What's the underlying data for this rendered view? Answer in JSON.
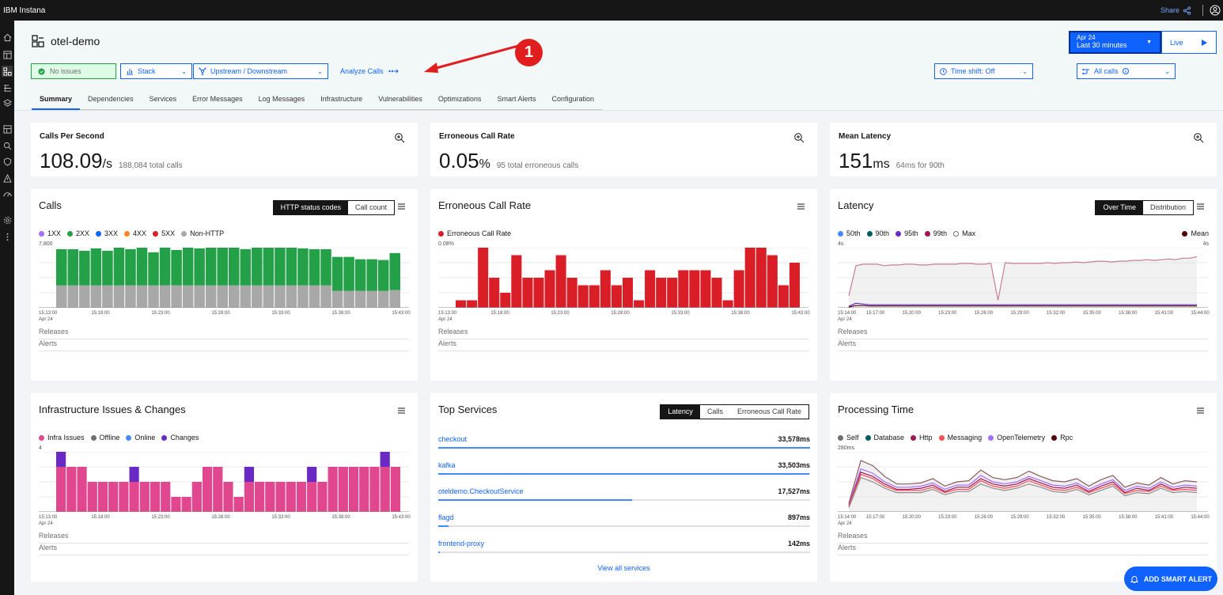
{
  "app": {
    "brand": "IBM Instana",
    "share_label": "Share"
  },
  "header": {
    "title": "otel-demo",
    "no_issues": "No issues",
    "stack_label": "Stack",
    "upstream_label": "Upstream / Downstream",
    "analyze_label": "Analyze Calls",
    "time_shift_label": "Time shift: Off",
    "all_calls_label": "All calls",
    "date_label": "Apr 24",
    "range_label": "Last 30 minutes",
    "live_label": "Live",
    "annotation_number": "1"
  },
  "tabs": [
    "Summary",
    "Dependencies",
    "Services",
    "Error Messages",
    "Log Messages",
    "Infrastructure",
    "Vulnerabilities",
    "Optimizations",
    "Smart Alerts",
    "Configuration"
  ],
  "kpis": [
    {
      "label": "Calls Per Second",
      "value": "108.09",
      "unit": "/s",
      "sub": "188,084 total calls"
    },
    {
      "label": "Erroneous Call Rate",
      "value": "0.05",
      "unit": "%",
      "sub": "95 total erroneous calls"
    },
    {
      "label": "Mean Latency",
      "value": "151",
      "unit": "ms",
      "sub": "64ms for 90th"
    }
  ],
  "calls_card": {
    "title": "Calls",
    "seg": [
      "HTTP status codes",
      "Call count"
    ],
    "legend": [
      {
        "label": "1XX",
        "color": "#a56eff"
      },
      {
        "label": "2XX",
        "color": "#24a148"
      },
      {
        "label": "3XX",
        "color": "#0f62fe"
      },
      {
        "label": "4XX",
        "color": "#ff832b"
      },
      {
        "label": "5XX",
        "color": "#da1e28"
      },
      {
        "label": "Non-HTTP",
        "color": "#a8a8a8"
      }
    ],
    "ymax_label": "7,800",
    "releases": "Releases",
    "alerts": "Alerts"
  },
  "err_card": {
    "title": "Erroneous Call Rate",
    "legend": "Erroneous Call Rate",
    "ymax_label": "0.08%",
    "releases": "Releases",
    "alerts": "Alerts"
  },
  "lat_card": {
    "title": "Latency",
    "seg": [
      "Over Time",
      "Distribution"
    ],
    "legend": [
      {
        "label": "50th",
        "color": "#4589ff"
      },
      {
        "label": "90th",
        "color": "#005d5d"
      },
      {
        "label": "95th",
        "color": "#6929c4"
      },
      {
        "label": "99th",
        "color": "#9f1853"
      },
      {
        "label": "Max",
        "color": "#ffffff"
      }
    ],
    "mean_label": "Mean",
    "ymax_label": "4s",
    "ymax_right": "4s",
    "releases": "Releases",
    "alerts": "Alerts"
  },
  "infra_card": {
    "title": "Infrastructure Issues & Changes",
    "legend": [
      {
        "label": "Infra Issues",
        "color": "#e0478f"
      },
      {
        "label": "Offline",
        "color": "#6f6f6f"
      },
      {
        "label": "Online",
        "color": "#4589ff"
      },
      {
        "label": "Changes",
        "color": "#6929c4"
      }
    ],
    "ymax_label": "4",
    "releases": "Releases",
    "alerts": "Alerts"
  },
  "top_services": {
    "title": "Top Services",
    "seg": [
      "Latency",
      "Calls",
      "Erroneous Call Rate"
    ],
    "items": [
      {
        "name": "checkout",
        "value": "33,578ms",
        "pct": 1.0
      },
      {
        "name": "kafka",
        "value": "33,503ms",
        "pct": 0.998
      },
      {
        "name": "oteldemo.CheckoutService",
        "value": "17,527ms",
        "pct": 0.522
      },
      {
        "name": "flagd",
        "value": "897ms",
        "pct": 0.027
      },
      {
        "name": "frontend-proxy",
        "value": "142ms",
        "pct": 0.004
      }
    ],
    "view_all": "View all services"
  },
  "proc_card": {
    "title": "Processing Time",
    "legend": [
      {
        "label": "Self",
        "color": "#6f6f6f"
      },
      {
        "label": "Database",
        "color": "#005d5d"
      },
      {
        "label": "Http",
        "color": "#9f1853"
      },
      {
        "label": "Messaging",
        "color": "#fa4d56"
      },
      {
        "label": "OpenTelemetry",
        "color": "#a56eff"
      },
      {
        "label": "Rpc",
        "color": "#520408"
      }
    ],
    "ymax_label": "280ms",
    "releases": "Releases",
    "alerts": "Alerts"
  },
  "xaxis_a": [
    "15:13:00",
    "15:18:00",
    "15:23:00",
    "15:28:00",
    "15:33:00",
    "15:38:00",
    "15:43:00"
  ],
  "xaxis_b": [
    "15:14:00",
    "15:17:00",
    "15:20:00",
    "15:23:00",
    "15:26:00",
    "15:29:00",
    "15:32:00",
    "15:35:00",
    "15:38:00",
    "15:41:00",
    "15:44:00"
  ],
  "date_sub": "Apr 24",
  "smart_alert_label": "ADD SMART ALERT",
  "chart_data": [
    {
      "type": "bar",
      "title": "Calls",
      "ylim": [
        0,
        7800
      ],
      "series": [
        {
          "name": "Non-HTTP",
          "values": [
            2900,
            2900,
            2900,
            2900,
            2900,
            2900,
            2900,
            2900,
            2900,
            2900,
            2900,
            2900,
            2900,
            2900,
            2900,
            2900,
            2900,
            2900,
            2900,
            2900,
            2900,
            2900,
            2900,
            2900,
            2200,
            2200,
            2200,
            2200,
            2200,
            2300
          ]
        },
        {
          "name": "2XX",
          "values": [
            4700,
            4700,
            4500,
            4800,
            4500,
            5000,
            4700,
            4900,
            4300,
            5600,
            4600,
            5000,
            4800,
            5600,
            5400,
            5100,
            4700,
            5000,
            4900,
            5100,
            4900,
            4800,
            4700,
            4700,
            4400,
            4400,
            4100,
            4100,
            4000,
            4800
          ]
        }
      ]
    },
    {
      "type": "bar",
      "title": "Erroneous Call Rate",
      "ylim": [
        0,
        0.08
      ],
      "series": [
        {
          "name": "Erroneous Call Rate",
          "values": [
            0.01,
            0.01,
            0.08,
            0.04,
            0.02,
            0.07,
            0.04,
            0.04,
            0.05,
            0.07,
            0.04,
            0.03,
            0.03,
            0.05,
            0.03,
            0.04,
            0.01,
            0.05,
            0.04,
            0.04,
            0.05,
            0.05,
            0.05,
            0.04,
            0.01,
            0.05,
            0.08,
            0.08,
            0.07,
            0.03,
            0.06
          ]
        }
      ]
    },
    {
      "type": "line",
      "title": "Latency",
      "ylim": [
        0,
        4
      ],
      "series": [
        {
          "name": "Max",
          "values": [
            0.8,
            2.8,
            2.9,
            2.9,
            2.9,
            2.8,
            2.85,
            2.85,
            2.9,
            2.9,
            2.85,
            2.85,
            2.9,
            2.9,
            2.9,
            2.9,
            2.95,
            2.95,
            2.9,
            2.9,
            2.95,
            0.5,
            3.0,
            2.95,
            2.95,
            2.95,
            2.95,
            2.95,
            3.0,
            2.95,
            3.0,
            3.0,
            3.05,
            3.0,
            3.05,
            3.1,
            3.1,
            3.05,
            3.1,
            3.1,
            3.15,
            3.15,
            3.2,
            3.15,
            3.2,
            3.25,
            3.2,
            3.3,
            3.3,
            3.4
          ]
        },
        {
          "name": "99th",
          "values": [
            0.1,
            0.3,
            0.25,
            0.2,
            0.2,
            0.2,
            0.2,
            0.2,
            0.2,
            0.2,
            0.2,
            0.2,
            0.2,
            0.2,
            0.2,
            0.2,
            0.2,
            0.2,
            0.2,
            0.2,
            0.2,
            0.2,
            0.2,
            0.2,
            0.2,
            0.2,
            0.2,
            0.2,
            0.2,
            0.2,
            0.2,
            0.2,
            0.2,
            0.2,
            0.2,
            0.2,
            0.2,
            0.2,
            0.2,
            0.2,
            0.2,
            0.2,
            0.2,
            0.2,
            0.2,
            0.2,
            0.2,
            0.2,
            0.2,
            0.2
          ]
        },
        {
          "name": "Mean",
          "values": [
            0.05,
            0.15,
            0.15,
            0.12,
            0.12,
            0.12,
            0.12,
            0.12,
            0.12,
            0.12,
            0.12,
            0.12,
            0.12,
            0.12,
            0.12,
            0.12,
            0.12,
            0.12,
            0.12,
            0.12,
            0.12,
            0.12,
            0.12,
            0.12,
            0.12,
            0.12,
            0.12,
            0.12,
            0.12,
            0.12,
            0.12,
            0.12,
            0.12,
            0.12,
            0.12,
            0.12,
            0.12,
            0.12,
            0.12,
            0.12,
            0.12,
            0.12,
            0.12,
            0.12,
            0.12,
            0.12,
            0.12,
            0.12,
            0.12,
            0.12
          ]
        }
      ]
    },
    {
      "type": "bar",
      "title": "Infrastructure Issues & Changes",
      "ylim": [
        0,
        4
      ],
      "series": [
        {
          "name": "Infra Issues",
          "values": [
            3,
            3,
            3,
            2,
            2,
            2,
            2,
            2,
            2,
            2,
            2,
            1,
            1,
            2,
            3,
            3,
            2,
            1,
            2,
            2,
            2,
            2,
            2,
            2,
            2,
            2,
            3,
            3,
            3,
            3,
            3,
            3,
            3
          ]
        },
        {
          "name": "Changes",
          "values": [
            1,
            0,
            0,
            0,
            0,
            0,
            0,
            1,
            0,
            0,
            0,
            0,
            0,
            0,
            0,
            0,
            0,
            0,
            1,
            0,
            0,
            0,
            0,
            0,
            1,
            0,
            0,
            0,
            0,
            0,
            0,
            1,
            0
          ]
        }
      ]
    },
    {
      "type": "line",
      "title": "Processing Time",
      "ylim": [
        0,
        280
      ],
      "series": [
        {
          "name": "Rpc",
          "values": [
            40,
            240,
            215,
            165,
            130,
            130,
            135,
            155,
            120,
            140,
            145,
            195,
            160,
            150,
            160,
            190,
            165,
            145,
            140,
            155,
            120,
            150,
            170,
            115,
            135,
            125,
            160,
            130,
            145,
            140
          ]
        },
        {
          "name": "OpenTelemetry",
          "values": [
            35,
            200,
            180,
            140,
            115,
            115,
            120,
            135,
            105,
            125,
            125,
            170,
            140,
            130,
            140,
            165,
            145,
            125,
            120,
            135,
            105,
            130,
            150,
            100,
            120,
            110,
            140,
            115,
            125,
            120
          ]
        },
        {
          "name": "Http",
          "values": [
            30,
            185,
            165,
            130,
            105,
            105,
            110,
            125,
            95,
            115,
            115,
            155,
            130,
            120,
            130,
            155,
            135,
            115,
            110,
            125,
            95,
            120,
            140,
            90,
            110,
            100,
            130,
            105,
            115,
            110
          ]
        },
        {
          "name": "Messaging",
          "values": [
            28,
            175,
            155,
            120,
            100,
            100,
            100,
            115,
            90,
            105,
            105,
            145,
            120,
            110,
            120,
            145,
            125,
            105,
            100,
            115,
            90,
            110,
            130,
            85,
            100,
            95,
            120,
            100,
            105,
            100
          ]
        },
        {
          "name": "Self",
          "values": [
            20,
            160,
            140,
            110,
            90,
            90,
            90,
            105,
            80,
            95,
            95,
            130,
            110,
            100,
            110,
            130,
            115,
            95,
            90,
            105,
            80,
            100,
            120,
            75,
            90,
            85,
            110,
            90,
            95,
            90
          ]
        }
      ]
    }
  ]
}
